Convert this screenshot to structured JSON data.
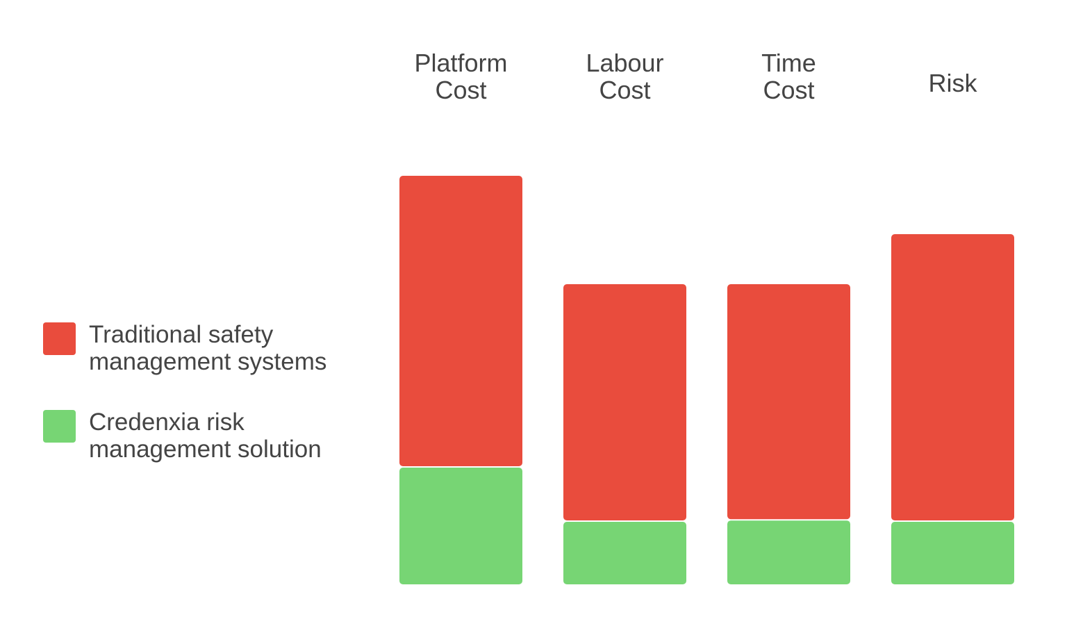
{
  "chart_data": {
    "type": "bar",
    "stacked": true,
    "categories": [
      [
        "Platform",
        "Cost"
      ],
      [
        "Labour",
        "Cost"
      ],
      [
        "Time",
        "Cost"
      ],
      [
        "Risk"
      ]
    ],
    "series": [
      {
        "name": "Credenxia risk management solution",
        "color": "#77d574",
        "values": [
          28,
          15,
          15.3,
          15
        ]
      },
      {
        "name": "Traditional safety management systems",
        "color": "#e94c3d",
        "values": [
          70,
          57,
          56.7,
          69
        ]
      }
    ],
    "ylim": [
      0,
      100
    ],
    "grid": false,
    "legend_position": "left"
  },
  "legend": {
    "items": [
      {
        "label_lines": [
          "Traditional safety",
          "management systems"
        ],
        "color": "#e94c3d"
      },
      {
        "label_lines": [
          "Credenxia risk",
          "management solution"
        ],
        "color": "#77d574"
      }
    ]
  }
}
